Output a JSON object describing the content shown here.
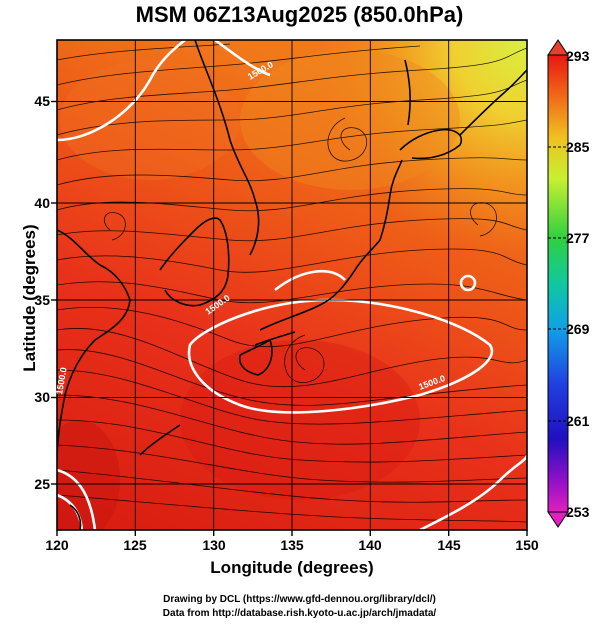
{
  "title": "MSM 06Z13Aug2025 (850.0hPa)",
  "x_axis": {
    "label": "Longitude (degrees)",
    "ticks": [
      "120",
      "125",
      "130",
      "135",
      "140",
      "145",
      "150"
    ]
  },
  "y_axis": {
    "label": "Latitude  (degrees)",
    "ticks": [
      "25",
      "30",
      "35",
      "40",
      "45"
    ]
  },
  "colorbar": {
    "ticks": [
      "293",
      "285",
      "277",
      "269",
      "261",
      "253"
    ]
  },
  "contour_labels": [
    "1500.0",
    "1500.0",
    "1500.0",
    "1500.0"
  ],
  "credits": {
    "line1": "Drawing by DCL (https://www.gfd-dennou.org/library/dcl/)",
    "line2": "Data from http://database.rish.kyoto-u.ac.jp/arch/jmadata/"
  },
  "chart_data": {
    "type": "heatmap",
    "title": "MSM 06Z13Aug2025 (850.0hPa)",
    "xlabel": "Longitude (degrees)",
    "ylabel": "Latitude  (degrees)",
    "xlim": [
      120,
      150
    ],
    "ylim": [
      22.4,
      47.6
    ],
    "colorbar_range": [
      253,
      293
    ],
    "colorbar_ticks": [
      293,
      285,
      277,
      269,
      261,
      253
    ],
    "overlays": [
      "temperature shading",
      "streamlines",
      "geopotential height contours (1500.0 m)",
      "coastlines"
    ],
    "grid": true
  }
}
